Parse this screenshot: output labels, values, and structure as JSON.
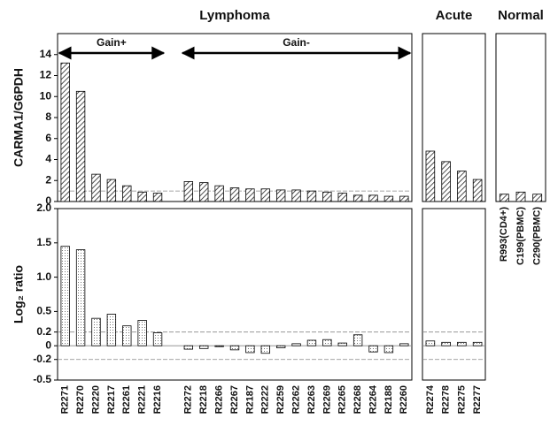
{
  "chart_data": [
    {
      "type": "bar",
      "title": "Lymphoma",
      "categories": [
        "R2271",
        "R2270",
        "R2220",
        "R2217",
        "R2261",
        "R2221",
        "R2216",
        null,
        "R2272",
        "R2218",
        "R2266",
        "R2267",
        "R2187",
        "R2222",
        "R2259",
        "R2262",
        "R2263",
        "R2269",
        "R2265",
        "R2268",
        "R2264",
        "R2188",
        "R2260"
      ],
      "annotations": [
        "Gain+",
        "Gain-"
      ],
      "panels": [
        {
          "ylabel": "CARMA1/G6PDH",
          "ylim": [
            0,
            16
          ],
          "yticks": [
            0,
            2,
            4,
            6,
            8,
            10,
            12,
            14
          ],
          "hlines": [
            1
          ],
          "values": [
            13.2,
            10.5,
            2.6,
            2.1,
            1.5,
            0.9,
            0.8,
            null,
            1.9,
            1.8,
            1.5,
            1.3,
            1.2,
            1.2,
            1.1,
            1.1,
            1.0,
            0.9,
            0.8,
            0.6,
            0.6,
            0.5,
            0.5
          ]
        },
        {
          "ylabel": "Log₂ ratio",
          "ylim": [
            -0.5,
            2.0
          ],
          "yticks": [
            {
              "value": 2.0,
              "label": "2.0"
            },
            1.5,
            {
              "value": 1.0,
              "label": "1.0"
            },
            0.5,
            0.2,
            0,
            -0.2,
            -0.5
          ],
          "hlines": [
            0.2,
            0,
            -0.2
          ],
          "values": [
            1.45,
            1.4,
            0.4,
            0.46,
            0.29,
            0.37,
            0.19,
            null,
            -0.05,
            -0.04,
            -0.01,
            -0.06,
            -0.1,
            -0.11,
            -0.03,
            0.03,
            0.08,
            0.09,
            0.04,
            0.16,
            -0.09,
            -0.1,
            0.03
          ]
        }
      ]
    },
    {
      "type": "bar",
      "title": "Acute",
      "categories": [
        "R2274",
        "R2278",
        "R2275",
        "R2277"
      ],
      "panels": [
        {
          "ylim": [
            0,
            16
          ],
          "values": [
            4.8,
            3.8,
            2.9,
            2.1
          ]
        },
        {
          "ylim": [
            -0.5,
            2.0
          ],
          "hlines": [
            0.2,
            0,
            -0.2
          ],
          "values": [
            0.07,
            0.05,
            0.05,
            0.05
          ]
        }
      ]
    },
    {
      "type": "bar",
      "title": "Normal",
      "categories": [
        "R993(CD4+)",
        "C199(PBMC)",
        "C290(PBMC)"
      ],
      "panels": [
        {
          "ylim": [
            0,
            16
          ],
          "values": [
            0.7,
            0.9,
            0.7
          ]
        }
      ]
    }
  ]
}
